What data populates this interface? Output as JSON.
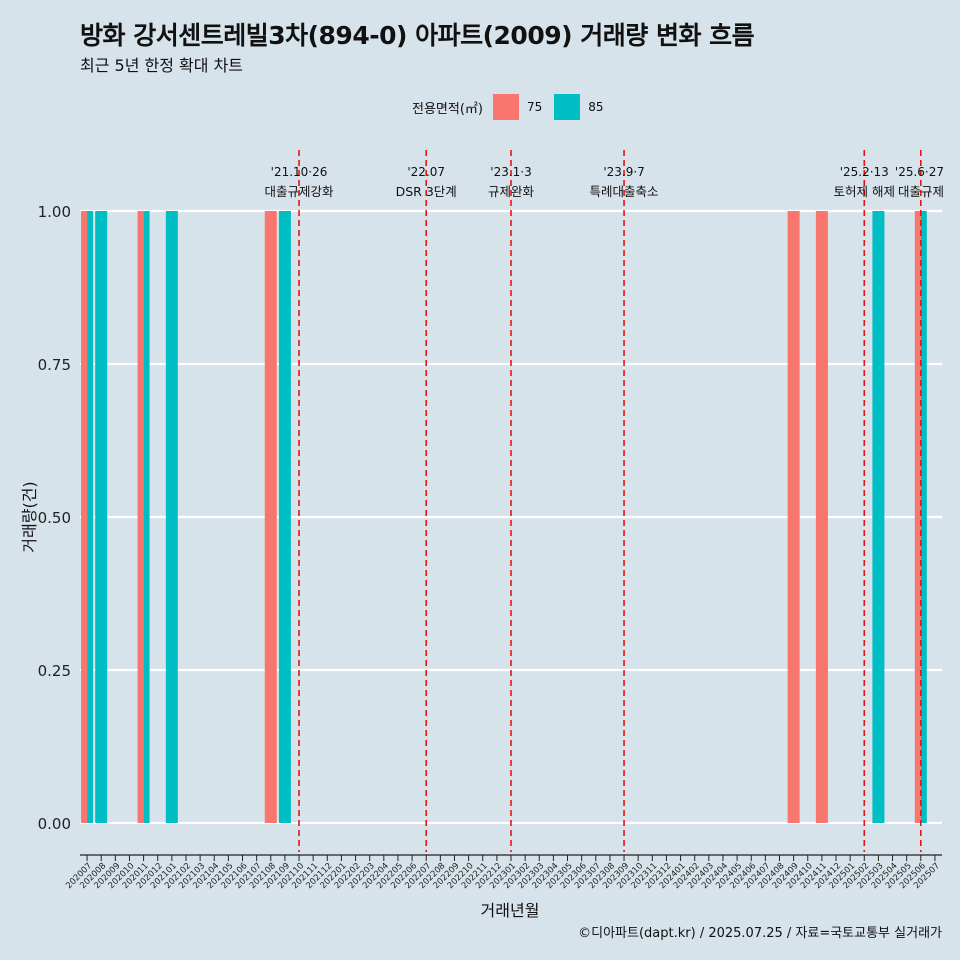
{
  "title": "방화 강서센트레빌3차(894-0) 아파트(2009) 거래량 변화 흐름",
  "subtitle": "최근 5년 한정 확대 차트",
  "legend": {
    "title": "전용면적(㎡)",
    "items": [
      {
        "label": "75",
        "color": "#F8766D"
      },
      {
        "label": "85",
        "color": "#00BFC4"
      }
    ]
  },
  "caption": "©디아파트(dapt.kr) / 2025.07.25 / 자료=국토교통부 실거래가",
  "chart_data": {
    "type": "bar",
    "xlabel": "거래년월",
    "ylabel": "거래량(건)",
    "ylim": [
      0,
      1
    ],
    "y_ticks": [
      "0.00",
      "0.25",
      "0.50",
      "0.75",
      "1.00"
    ],
    "categories": [
      "202007",
      "202008",
      "202009",
      "202010",
      "202011",
      "202012",
      "202101",
      "202102",
      "202103",
      "202104",
      "202105",
      "202106",
      "202107",
      "202108",
      "202109",
      "202110",
      "202111",
      "202112",
      "202201",
      "202202",
      "202203",
      "202204",
      "202205",
      "202206",
      "202207",
      "202208",
      "202209",
      "202210",
      "202211",
      "202212",
      "202301",
      "202302",
      "202303",
      "202304",
      "202305",
      "202306",
      "202307",
      "202308",
      "202309",
      "202310",
      "202311",
      "202312",
      "202401",
      "202402",
      "202403",
      "202404",
      "202405",
      "202406",
      "202407",
      "202408",
      "202409",
      "202410",
      "202411",
      "202412",
      "202501",
      "202502",
      "202503",
      "202504",
      "202505",
      "202506",
      "202507"
    ],
    "series": [
      {
        "name": "75",
        "color": "#F8766D",
        "bars": [
          {
            "x": "202007",
            "value": 1
          },
          {
            "x": "202011",
            "value": 1
          },
          {
            "x": "202108",
            "value": 1
          },
          {
            "x": "202409",
            "value": 1
          },
          {
            "x": "202411",
            "value": 1
          },
          {
            "x": "202506",
            "value": 1
          }
        ]
      },
      {
        "name": "85",
        "color": "#00BFC4",
        "bars": [
          {
            "x": "202007",
            "value": 1
          },
          {
            "x": "202008",
            "value": 1
          },
          {
            "x": "202011",
            "value": 1
          },
          {
            "x": "202101",
            "value": 1
          },
          {
            "x": "202109",
            "value": 1
          },
          {
            "x": "202503",
            "value": 1
          },
          {
            "x": "202506",
            "value": 1
          }
        ]
      }
    ],
    "annotations": [
      {
        "x": "202110",
        "date": "'21.10·26",
        "label": "대출규제강화"
      },
      {
        "x": "202207",
        "date": "'22.07",
        "label": "DSR 3단계"
      },
      {
        "x": "202301",
        "date": "'23.1·3",
        "label": "규제완화"
      },
      {
        "x": "202309",
        "date": "'23.9·7",
        "label": "특례대출축소"
      },
      {
        "x": "202502",
        "date": "'25.2·13",
        "label": "토허제 해제"
      },
      {
        "x": "202506",
        "date": "'25.6·27",
        "label": "대출규제"
      }
    ]
  }
}
